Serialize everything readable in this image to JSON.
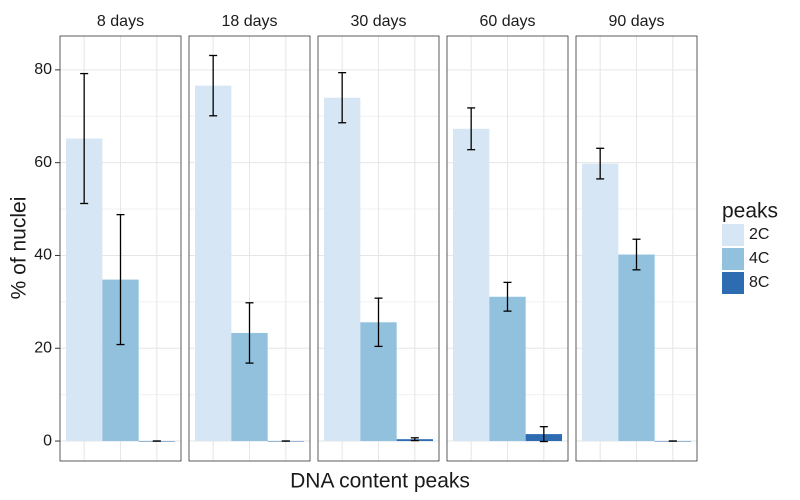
{
  "chart_data": {
    "type": "bar",
    "xlabel": "DNA content peaks",
    "ylabel": "% of nuclei",
    "legend_title": "peaks",
    "legend_position": "right",
    "grid": true,
    "facets": [
      "8 days",
      "18 days",
      "30 days",
      "60 days",
      "90 days"
    ],
    "series": [
      {
        "name": "2C",
        "color": "#d6e6f4",
        "values": [
          65.2,
          76.6,
          74.0,
          67.3,
          59.8
        ],
        "errors": [
          14.0,
          6.5,
          5.4,
          4.5,
          3.3
        ]
      },
      {
        "name": "4C",
        "color": "#92c1de",
        "values": [
          34.8,
          23.3,
          25.6,
          31.1,
          40.2
        ],
        "errors": [
          14.0,
          6.5,
          5.2,
          3.1,
          3.3
        ]
      },
      {
        "name": "8C",
        "color": "#2e6cb2",
        "values": [
          0,
          0,
          0.4,
          1.5,
          0
        ],
        "errors": [
          0,
          0,
          0.3,
          1.6,
          0
        ]
      }
    ],
    "ylim": [
      -4.3,
      87.3
    ],
    "yticks": [
      0,
      20,
      40,
      60,
      80
    ]
  }
}
